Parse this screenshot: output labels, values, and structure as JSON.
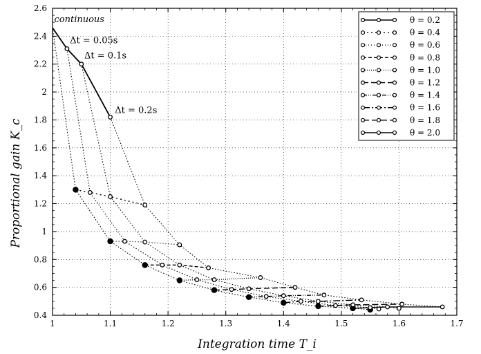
{
  "chart_data": {
    "type": "line",
    "xlabel": "Integration time  T_i",
    "ylabel": "Proportional gain  K_c",
    "xlim": [
      1,
      1.7
    ],
    "ylim": [
      0.4,
      2.6
    ],
    "xticks": [
      "1",
      "1.1",
      "1.2",
      "1.3",
      "1.4",
      "1.5",
      "1.6",
      "1.7"
    ],
    "yticks": [
      "0.4",
      "0.6",
      "0.8",
      "1",
      "1.2",
      "1.4",
      "1.6",
      "1.8",
      "2",
      "2.2",
      "2.4",
      "2.6"
    ],
    "grid": true,
    "legend_position": "top-right",
    "annotations": [
      {
        "text": "continuous",
        "x": 1.003,
        "y": 2.5
      },
      {
        "text": "Δt = 0.05s",
        "x": 1.03,
        "y": 2.35
      },
      {
        "text": "Δt = 0.1s",
        "x": 1.055,
        "y": 2.24
      },
      {
        "text": "Δt = 0.2s",
        "x": 1.108,
        "y": 1.85
      }
    ],
    "sampling_curve": {
      "name": "",
      "x": [
        1.0,
        1.025,
        1.05,
        1.1
      ],
      "y": [
        2.46,
        2.31,
        2.2,
        1.82
      ],
      "style": "solid"
    },
    "dt_curves": [
      {
        "x": [
          1.0,
          1.04,
          1.1,
          1.16,
          1.22,
          1.28,
          1.34,
          1.4,
          1.46,
          1.52,
          1.55
        ],
        "y": [
          2.46,
          1.3,
          0.93,
          0.76,
          0.65,
          0.58,
          0.53,
          0.49,
          0.465,
          0.45,
          0.44
        ],
        "filled": true
      },
      {
        "x": [
          1.025,
          1.065,
          1.125,
          1.19,
          1.25,
          1.31,
          1.37,
          1.43,
          1.49,
          1.55,
          1.565
        ],
        "y": [
          2.31,
          1.28,
          0.93,
          0.76,
          0.655,
          0.585,
          0.535,
          0.5,
          0.47,
          0.455,
          0.445
        ],
        "filled": false
      },
      {
        "x": [
          1.05,
          1.1,
          1.16,
          1.22,
          1.28,
          1.34,
          1.4,
          1.46,
          1.52,
          1.58,
          1.6
        ],
        "y": [
          2.2,
          1.25,
          0.925,
          0.76,
          0.655,
          0.59,
          0.54,
          0.5,
          0.475,
          0.46,
          0.45
        ],
        "filled": false
      },
      {
        "x": [
          1.1,
          1.16,
          1.22,
          1.27,
          1.36,
          1.42,
          1.47,
          1.535,
          1.605,
          1.675
        ],
        "y": [
          1.82,
          1.19,
          0.905,
          0.74,
          0.67,
          0.6,
          0.545,
          0.51,
          0.48,
          0.46
        ],
        "filled": false
      }
    ],
    "series": [
      {
        "name": "θ = 0.2",
        "dash": "",
        "x": [
          1.0,
          1.025,
          1.05,
          1.1
        ],
        "y": [
          2.46,
          2.31,
          2.2,
          1.82
        ]
      },
      {
        "name": "θ = 0.4",
        "dash": "2,4",
        "x": [
          1.04,
          1.065,
          1.1,
          1.16
        ],
        "y": [
          1.3,
          1.28,
          1.25,
          1.19
        ]
      },
      {
        "name": "θ = 0.6",
        "dash": "1,3",
        "x": [
          1.1,
          1.125,
          1.16,
          1.22
        ],
        "y": [
          0.93,
          0.93,
          0.925,
          0.905
        ]
      },
      {
        "name": "θ = 0.8",
        "dash": "5,3",
        "x": [
          1.16,
          1.19,
          1.22,
          1.27
        ],
        "y": [
          0.76,
          0.76,
          0.76,
          0.74
        ]
      },
      {
        "name": "θ = 1.0",
        "dash": "1,2",
        "x": [
          1.22,
          1.25,
          1.28,
          1.36
        ],
        "y": [
          0.65,
          0.655,
          0.655,
          0.67
        ]
      },
      {
        "name": "θ = 1.2",
        "dash": "8,4",
        "x": [
          1.28,
          1.31,
          1.34,
          1.42
        ],
        "y": [
          0.58,
          0.585,
          0.59,
          0.6
        ]
      },
      {
        "name": "θ = 1.4",
        "dash": "6,2,1,2,1,2",
        "x": [
          1.34,
          1.37,
          1.4,
          1.47
        ],
        "y": [
          0.53,
          0.535,
          0.54,
          0.545
        ]
      },
      {
        "name": "θ = 1.6",
        "dash": "10,3,2,3",
        "x": [
          1.4,
          1.43,
          1.46,
          1.535
        ],
        "y": [
          0.49,
          0.5,
          0.5,
          0.51
        ]
      },
      {
        "name": "θ = 1.8",
        "dash": "9,4",
        "x": [
          1.46,
          1.49,
          1.52,
          1.605
        ],
        "y": [
          0.465,
          0.47,
          0.475,
          0.48
        ]
      },
      {
        "name": "θ = 2.0",
        "dash": "",
        "x": [
          1.52,
          1.55,
          1.58,
          1.675
        ],
        "y": [
          0.45,
          0.455,
          0.46,
          0.46
        ]
      }
    ]
  }
}
